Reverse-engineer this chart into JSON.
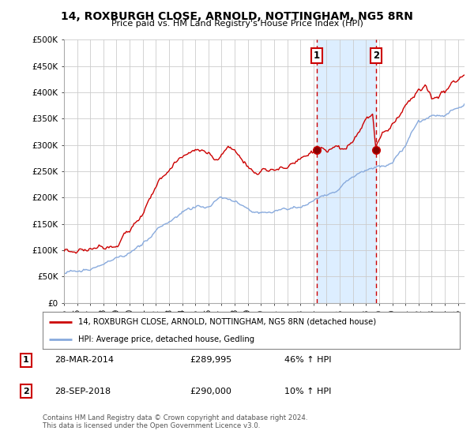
{
  "title": "14, ROXBURGH CLOSE, ARNOLD, NOTTINGHAM, NG5 8RN",
  "subtitle": "Price paid vs. HM Land Registry's House Price Index (HPI)",
  "ylabel_ticks": [
    0,
    50000,
    100000,
    150000,
    200000,
    250000,
    300000,
    350000,
    400000,
    450000,
    500000
  ],
  "ylabel_labels": [
    "£0",
    "£50K",
    "£100K",
    "£150K",
    "£200K",
    "£250K",
    "£300K",
    "£350K",
    "£400K",
    "£450K",
    "£500K"
  ],
  "ylim": [
    0,
    500000
  ],
  "sale1_date": 2014.24,
  "sale1_price": 289995,
  "sale1_label": "1",
  "sale1_text": "28-MAR-2014",
  "sale1_amount": "£289,995",
  "sale1_pct": "46% ↑ HPI",
  "sale2_date": 2018.75,
  "sale2_price": 290000,
  "sale2_label": "2",
  "sale2_text": "28-SEP-2018",
  "sale2_amount": "£290,000",
  "sale2_pct": "10% ↑ HPI",
  "line1_color": "#cc0000",
  "line2_color": "#88aadd",
  "shade_color": "#ddeeff",
  "vline_color": "#cc0000",
  "marker_box_color": "#cc0000",
  "legend1": "14, ROXBURGH CLOSE, ARNOLD, NOTTINGHAM, NG5 8RN (detached house)",
  "legend2": "HPI: Average price, detached house, Gedling",
  "footnote": "Contains HM Land Registry data © Crown copyright and database right 2024.\nThis data is licensed under the Open Government Licence v3.0.",
  "background_color": "#ffffff",
  "grid_color": "#cccccc"
}
